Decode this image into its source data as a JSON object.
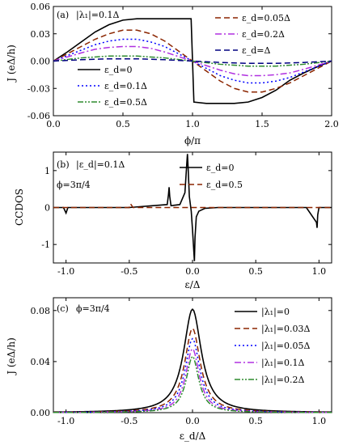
{
  "figure": {
    "panels": [
      {
        "id": "a",
        "panel_label": "(a)",
        "annotation": "|λ₁|=0.1Δ",
        "ylabel": "J (eΔ/h)",
        "xlabel": "ϕ/π"
      },
      {
        "id": "b",
        "panel_label": "(b)",
        "annotation": "|ε_d|=0.1Δ",
        "annotation2": "ϕ=3π/4",
        "ylabel": "CCDOS",
        "xlabel": "ε/Δ"
      },
      {
        "id": "c",
        "panel_label": "(c)",
        "annotation": "ϕ=3π/4",
        "ylabel": "J (eΔ/h)",
        "xlabel": "ε_d/Δ"
      }
    ]
  },
  "chart_data": [
    {
      "type": "line",
      "panel": "a",
      "xlabel": "ϕ/π",
      "ylabel": "J (eΔ/h)",
      "xlim": [
        0.0,
        2.0
      ],
      "ylim": [
        -0.06,
        0.06
      ],
      "xticks": [
        "0.0",
        "0.5",
        "1.0",
        "1.5",
        "2.0"
      ],
      "yticks": [
        "-0.06",
        "-0.03",
        "0.00",
        "0.03",
        "0.06"
      ],
      "series": [
        {
          "name": "ε_d=0",
          "color": "#000000",
          "style": "solid",
          "x": [
            0,
            0.1,
            0.2,
            0.3,
            0.4,
            0.5,
            0.6,
            0.7,
            0.8,
            0.9,
            0.99,
            1.01,
            1.1,
            1.2,
            1.3,
            1.4,
            1.5,
            1.6,
            1.7,
            1.8,
            1.9,
            2.0
          ],
          "y": [
            0,
            0.01,
            0.021,
            0.032,
            0.04,
            0.045,
            0.0465,
            0.0465,
            0.0465,
            0.0465,
            0.0465,
            -0.045,
            -0.0465,
            -0.0465,
            -0.0465,
            -0.045,
            -0.04,
            -0.032,
            -0.021,
            -0.013,
            -0.006,
            0
          ]
        },
        {
          "name": "ε_d=0.05Δ",
          "color": "#8B2500",
          "style": "dash",
          "x": [
            0,
            0.1,
            0.2,
            0.3,
            0.4,
            0.5,
            0.6,
            0.7,
            0.8,
            0.9,
            1.0,
            1.1,
            1.2,
            1.3,
            1.4,
            1.5,
            1.6,
            1.7,
            1.8,
            1.9,
            2.0
          ],
          "y": [
            0,
            0.008,
            0.016,
            0.024,
            0.03,
            0.034,
            0.034,
            0.03,
            0.022,
            0.011,
            0,
            -0.011,
            -0.022,
            -0.03,
            -0.034,
            -0.034,
            -0.03,
            -0.024,
            -0.016,
            -0.008,
            0
          ]
        },
        {
          "name": "ε_d=0.1Δ",
          "color": "#0000FF",
          "style": "dot",
          "x": [
            0,
            0.1,
            0.2,
            0.3,
            0.4,
            0.5,
            0.6,
            0.7,
            0.8,
            0.9,
            1.0,
            1.1,
            1.2,
            1.3,
            1.4,
            1.5,
            1.6,
            1.7,
            1.8,
            1.9,
            2.0
          ],
          "y": [
            0,
            0.006,
            0.012,
            0.018,
            0.022,
            0.024,
            0.024,
            0.021,
            0.016,
            0.008,
            0,
            -0.008,
            -0.016,
            -0.021,
            -0.024,
            -0.024,
            -0.022,
            -0.018,
            -0.012,
            -0.006,
            0
          ]
        },
        {
          "name": "ε_d=0.2Δ",
          "color": "#B030E0",
          "style": "dashdot",
          "x": [
            0,
            0.1,
            0.2,
            0.3,
            0.4,
            0.5,
            0.6,
            0.7,
            0.8,
            0.9,
            1.0,
            1.1,
            1.2,
            1.3,
            1.4,
            1.5,
            1.6,
            1.7,
            1.8,
            1.9,
            2.0
          ],
          "y": [
            0,
            0.0045,
            0.009,
            0.013,
            0.015,
            0.016,
            0.016,
            0.014,
            0.01,
            0.005,
            0,
            -0.005,
            -0.01,
            -0.014,
            -0.016,
            -0.016,
            -0.015,
            -0.013,
            -0.009,
            -0.0045,
            0
          ]
        },
        {
          "name": "ε_d=0.5Δ",
          "color": "#2E8B2E",
          "style": "dashdotdot",
          "x": [
            0,
            0.2,
            0.4,
            0.6,
            0.8,
            1.0,
            1.2,
            1.4,
            1.6,
            1.8,
            2.0
          ],
          "y": [
            0,
            0.0035,
            0.0055,
            0.0055,
            0.0035,
            0,
            -0.0035,
            -0.0055,
            -0.0055,
            -0.0035,
            0
          ]
        },
        {
          "name": "ε_d=Δ",
          "color": "#000080",
          "style": "dash",
          "x": [
            0,
            0.2,
            0.4,
            0.6,
            0.8,
            1.0,
            1.2,
            1.4,
            1.6,
            1.8,
            2.0
          ],
          "y": [
            0,
            0.0015,
            0.0025,
            0.0025,
            0.0015,
            0,
            -0.0015,
            -0.0025,
            -0.0025,
            -0.0015,
            0
          ]
        }
      ],
      "legend": [
        "ε_d=0",
        "ε_d=0.1Δ",
        "ε_d=0.5Δ",
        "ε_d=0.05Δ",
        "ε_d=0.2Δ",
        "ε_d=Δ"
      ]
    },
    {
      "type": "line",
      "panel": "b",
      "xlabel": "ε/Δ",
      "ylabel": "CCDOS",
      "xlim": [
        -1.1,
        1.1
      ],
      "ylim": [
        -1.5,
        1.5
      ],
      "xticks": [
        "-1.0",
        "-0.5",
        "0.0",
        "0.5",
        "1.0"
      ],
      "yticks": [
        "-1",
        "0",
        "1"
      ],
      "series": [
        {
          "name": "ε_d=0",
          "color": "#000000",
          "style": "solid",
          "x": [
            -1.1,
            -1.02,
            -1.0,
            -0.985,
            -0.98,
            -0.5,
            -0.2,
            -0.19,
            -0.185,
            -0.18,
            -0.17,
            -0.1,
            -0.06,
            -0.045,
            -0.04,
            -0.035,
            -0.025,
            -0.01,
            0.0,
            0.015,
            0.02,
            0.03,
            0.05,
            0.1,
            0.2,
            0.3,
            0.5,
            0.9,
            0.98,
            0.985,
            0.99,
            1.0,
            1.1
          ],
          "y": [
            0,
            0,
            -0.15,
            0,
            0,
            0,
            0.08,
            0.35,
            0.55,
            0.3,
            0.05,
            0.08,
            0.4,
            1.2,
            1.45,
            1.1,
            0.3,
            -0.1,
            -0.6,
            -1.45,
            -0.8,
            -0.25,
            -0.1,
            -0.02,
            0,
            0,
            0,
            0,
            -0.4,
            -0.55,
            -0.2,
            0,
            0
          ]
        },
        {
          "name": "ε_d=0.5",
          "color": "#8B2500",
          "style": "dash",
          "x": [
            -1.1,
            -0.5,
            -0.49,
            -0.48,
            -0.47,
            -0.4,
            0.0,
            1.1
          ],
          "y": [
            0,
            0,
            0.1,
            0.05,
            0,
            0,
            0,
            0
          ]
        }
      ],
      "legend": [
        "ε_d=0",
        "ε_d=0.5"
      ]
    },
    {
      "type": "line",
      "panel": "c",
      "xlabel": "ε_d/Δ",
      "ylabel": "J (eΔ/h)",
      "xlim": [
        -1.1,
        1.1
      ],
      "ylim": [
        0.0,
        0.09
      ],
      "xticks": [
        "-1.0",
        "-0.5",
        "0.0",
        "0.5",
        "1.0"
      ],
      "yticks": [
        "0.00",
        "0.04",
        "0.08"
      ],
      "series": [
        {
          "name": "|λ₁|=0",
          "color": "#000000",
          "style": "solid",
          "peak": 0.081,
          "width": 0.085
        },
        {
          "name": "|λ₁|=0.03Δ",
          "color": "#8B2500",
          "style": "dash",
          "peak": 0.066,
          "width": 0.075
        },
        {
          "name": "|λ₁|=0.05Δ",
          "color": "#0000FF",
          "style": "dot",
          "peak": 0.058,
          "width": 0.07
        },
        {
          "name": "|λ₁|=0.1Δ",
          "color": "#B030E0",
          "style": "dashdot",
          "peak": 0.05,
          "width": 0.065
        },
        {
          "name": "|λ₁|=0.2Δ",
          "color": "#2E8B2E",
          "style": "dashdotdot",
          "peak": 0.044,
          "width": 0.06
        }
      ],
      "legend": [
        "|λ₁|=0",
        "|λ₁|=0.03Δ",
        "|λ₁|=0.05Δ",
        "|λ₁|=0.1Δ",
        "|λ₁|=0.2Δ"
      ]
    }
  ]
}
